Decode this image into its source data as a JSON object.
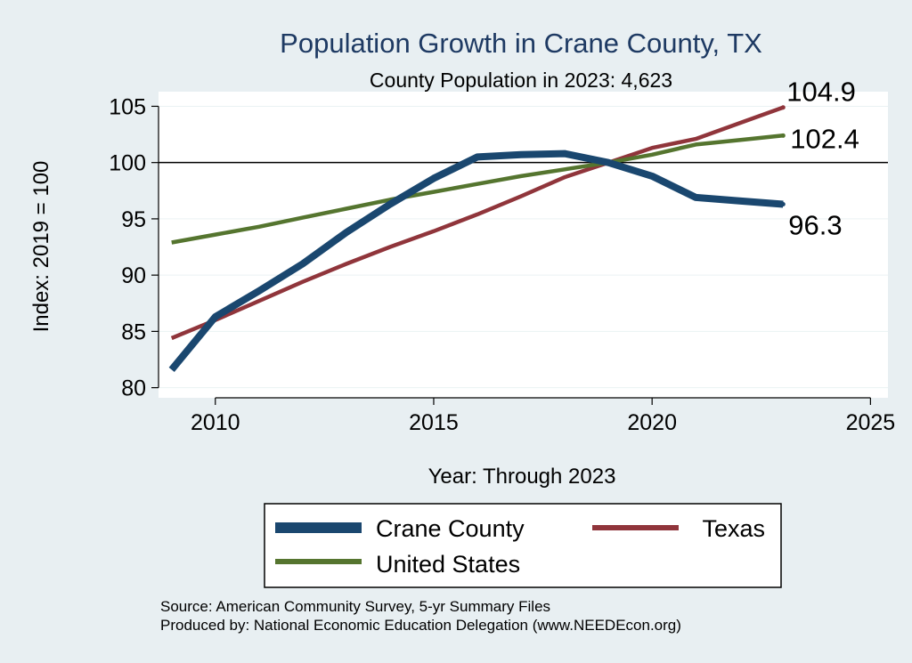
{
  "chart_data": {
    "type": "line",
    "title": "Population Growth in Crane County, TX",
    "subtitle": "County Population in 2023: 4,623",
    "xlabel": "Year: Through 2023",
    "ylabel": "Index: 2019 = 100",
    "xlim": [
      2008.7,
      2025.4
    ],
    "ylim": [
      79.1,
      106.3
    ],
    "x_ticks": [
      2010,
      2015,
      2020,
      2025
    ],
    "x_tick_labels": [
      "2010",
      "2015",
      "2020",
      "2025"
    ],
    "y_ticks": [
      80,
      85,
      90,
      95,
      100,
      105
    ],
    "y_tick_labels": [
      "80",
      "85",
      "90",
      "95",
      "100",
      "105"
    ],
    "reference_line": 100,
    "grid": true,
    "legend_position": "bottom",
    "x": [
      2009,
      2010,
      2011,
      2012,
      2013,
      2014,
      2015,
      2016,
      2017,
      2018,
      2019,
      2020,
      2021,
      2022,
      2023
    ],
    "series": [
      {
        "name": "Crane  County",
        "color": "#1a476f",
        "values": [
          81.6,
          86.3,
          88.6,
          91.0,
          93.8,
          96.3,
          98.6,
          100.5,
          100.7,
          100.8,
          100.0,
          98.8,
          96.9,
          96.6,
          96.3
        ],
        "end_label": "96.3"
      },
      {
        "name": "Texas",
        "color": "#90353b",
        "values": [
          84.4,
          86.0,
          87.7,
          89.4,
          91.0,
          92.5,
          93.9,
          95.4,
          97.0,
          98.7,
          100.0,
          101.3,
          102.1,
          103.5,
          104.9
        ],
        "end_label": "104.9"
      },
      {
        "name": "United States",
        "color": "#55752f",
        "values": [
          92.9,
          93.6,
          94.3,
          95.1,
          95.9,
          96.7,
          97.4,
          98.1,
          98.8,
          99.4,
          100.0,
          100.7,
          101.6,
          102.0,
          102.4
        ],
        "end_label": "102.4"
      }
    ],
    "source_lines": [
      "Source: American Community Survey, 5-yr Summary Files",
      "Produced by: National Economic Education Delegation (www.NEEDEcon.org)"
    ]
  }
}
